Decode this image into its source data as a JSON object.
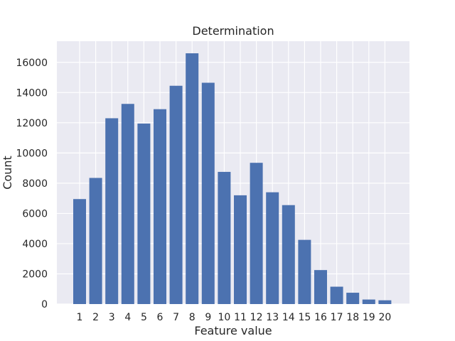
{
  "chart_data": {
    "type": "bar",
    "title": "Determination",
    "xlabel": "Feature value",
    "ylabel": "Count",
    "categories": [
      "1",
      "2",
      "3",
      "4",
      "5",
      "6",
      "7",
      "8",
      "9",
      "10",
      "11",
      "12",
      "13",
      "14",
      "15",
      "16",
      "17",
      "18",
      "19",
      "20"
    ],
    "values": [
      6950,
      8350,
      12300,
      13250,
      11950,
      12900,
      14450,
      16600,
      14650,
      8750,
      7200,
      9350,
      7400,
      6550,
      4250,
      2250,
      1150,
      750,
      300,
      250
    ],
    "ylim": [
      0,
      17400
    ],
    "yticks": [
      0,
      2000,
      4000,
      6000,
      8000,
      10000,
      12000,
      14000,
      16000
    ],
    "ytick_labels": [
      "0",
      "2000",
      "4000",
      "6000",
      "8000",
      "10000",
      "12000",
      "14000",
      "16000"
    ],
    "grid": true,
    "colors": {
      "bar": "#4c72b0",
      "background": "#eaeaf2",
      "grid": "#ffffff",
      "text": "#262626"
    }
  }
}
